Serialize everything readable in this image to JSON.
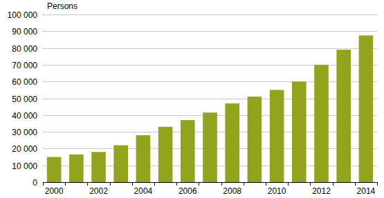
{
  "chart_data": {
    "type": "bar",
    "y_label": "Persons",
    "categories": [
      "2000",
      null,
      "2002",
      null,
      "2004",
      null,
      "2006",
      null,
      "2008",
      null,
      "2010",
      null,
      "2012",
      null,
      "2014"
    ],
    "values": [
      15000,
      16500,
      18000,
      22000,
      28000,
      33000,
      37000,
      41500,
      47000,
      51000,
      55000,
      60000,
      70000,
      79000,
      87500
    ],
    "color": "#93a31e",
    "ylim": [
      0,
      100000
    ],
    "yticks": [
      0,
      {
        "value": 10000,
        "label": "10 000"
      },
      {
        "value": 20000,
        "label": "20 000"
      },
      {
        "value": 30000,
        "label": "30 000"
      },
      {
        "value": 40000,
        "label": "40 000"
      },
      {
        "value": 50000,
        "label": "50 000"
      },
      {
        "value": 60000,
        "label": "60 000"
      },
      {
        "value": 70000,
        "label": "70 000"
      },
      {
        "value": 80000,
        "label": "80 000"
      },
      {
        "value": 90000,
        "label": "90 000"
      },
      {
        "value": 100000,
        "label": "100 000"
      }
    ],
    "grid": true
  }
}
